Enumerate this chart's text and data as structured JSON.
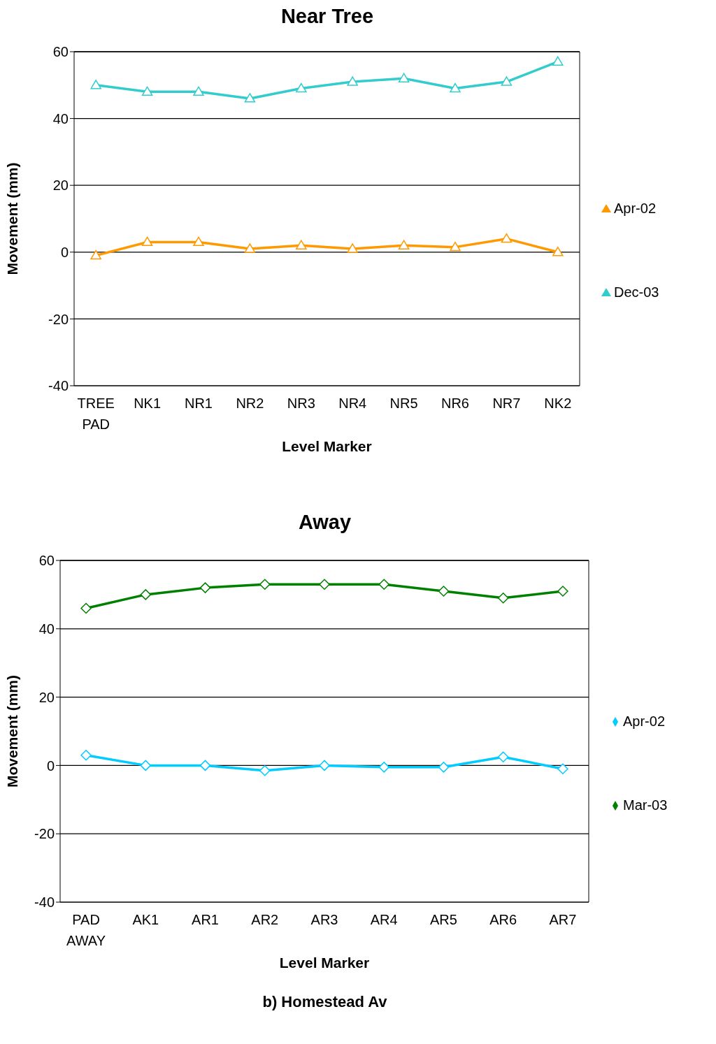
{
  "chart_data": [
    {
      "type": "line",
      "title": "Near Tree",
      "xlabel": "Level Marker",
      "ylabel": "Movement (mm)",
      "categories": [
        "TREE PAD",
        "NK1",
        "NR1",
        "NR2",
        "NR3",
        "NR4",
        "NR5",
        "NR6",
        "NR7",
        "NK2"
      ],
      "series": [
        {
          "name": "Apr-02",
          "color": "#ff9900",
          "values": [
            -1,
            3,
            3,
            1,
            2,
            1,
            2,
            1.5,
            4,
            0
          ]
        },
        {
          "name": "Dec-03",
          "color": "#33cccc",
          "values": [
            50,
            48,
            48,
            46,
            49,
            51,
            52,
            49,
            51,
            57
          ]
        }
      ],
      "ylim": [
        -40,
        60
      ],
      "yticks": [
        -40,
        -20,
        0,
        20,
        40,
        60
      ],
      "grid": "y",
      "legend": "right",
      "marker": "triangle",
      "line_style": "solid"
    },
    {
      "type": "line",
      "title": "Away",
      "xlabel": "Level Marker",
      "ylabel": "Movement (mm)",
      "categories": [
        "PAD AWAY",
        "AK1",
        "AR1",
        "AR2",
        "AR3",
        "AR4",
        "AR5",
        "AR6",
        "AR7"
      ],
      "series": [
        {
          "name": "Apr-02",
          "color": "#00ccff",
          "values": [
            3,
            0,
            0,
            -1.5,
            0,
            -0.5,
            -0.5,
            2.5,
            -1
          ]
        },
        {
          "name": "Mar-03",
          "color": "#008000",
          "values": [
            46,
            50,
            52,
            53,
            53,
            53,
            51,
            49,
            51
          ]
        }
      ],
      "ylim": [
        -40,
        60
      ],
      "yticks": [
        -40,
        -20,
        0,
        20,
        40,
        60
      ],
      "grid": "y",
      "legend": "right",
      "marker": "diamond",
      "line_style": "solid",
      "annotations": [
        "b) Homestead Av"
      ]
    }
  ]
}
